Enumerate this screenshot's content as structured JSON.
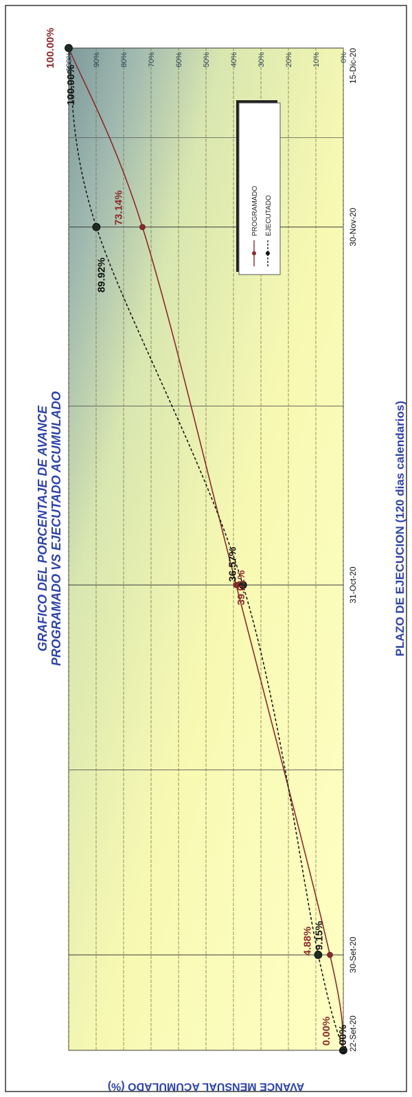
{
  "chart_data": {
    "type": "line",
    "title_line1": "GRAFICO DEL PORCENTAJE DE AVANCE",
    "title_line2": "PROGRAMADO VS EJECUTADO ACUMULADO",
    "xlabel": "PLAZO DE EJECUCION (120 dias calendarios)",
    "ylabel": "AVANCE MENSUAL ACUMULADO (%)",
    "x_ticks": [
      "22-Set-20",
      "30-Set-20",
      "31-Oct-20",
      "30-Nov-20",
      "15-Dic-20"
    ],
    "y_ticks": [
      "0%",
      "10%",
      "20%",
      "30%",
      "40%",
      "50%",
      "60%",
      "70%",
      "80%",
      "90%",
      "100%"
    ],
    "ylim": [
      0,
      100
    ],
    "grid": true,
    "legend_position": "top-right",
    "colors": {
      "programado": "#8b2a2a",
      "ejecutado": "#1a1a1a",
      "title": "#2d43a8",
      "point_label_programado": "#8b2a2a",
      "point_label_ejecutado": "#111111"
    },
    "series": [
      {
        "name": "PROGRAMADO",
        "style": "solid",
        "points": [
          {
            "x": "22-Set-20",
            "y": 0.0
          },
          {
            "x": "30-Set-20",
            "y": 4.88
          },
          {
            "x": "31-Oct-20",
            "y": 39.01
          },
          {
            "x": "30-Nov-20",
            "y": 73.14
          },
          {
            "x": "15-Dic-20",
            "y": 100.0
          }
        ]
      },
      {
        "name": "EJECUTADO",
        "style": "dashed",
        "points": [
          {
            "x": "22-Set-20",
            "y": 0.0
          },
          {
            "x": "30-Set-20",
            "y": 9.15
          },
          {
            "x": "31-Oct-20",
            "y": 36.57
          },
          {
            "x": "30-Nov-20",
            "y": 89.92
          },
          {
            "x": "15-Dic-20",
            "y": 100.0
          }
        ]
      }
    ],
    "point_labels": [
      {
        "series": "EJECUTADO",
        "index": 0,
        "text": "0.00%"
      },
      {
        "series": "PROGRAMADO",
        "index": 0,
        "text": "0.00%"
      },
      {
        "series": "EJECUTADO",
        "index": 1,
        "text": "9.15%"
      },
      {
        "series": "PROGRAMADO",
        "index": 1,
        "text": "4.88%"
      },
      {
        "series": "PROGRAMADO",
        "index": 2,
        "text": "39.01%"
      },
      {
        "series": "EJECUTADO",
        "index": 2,
        "text": "36.57%"
      },
      {
        "series": "EJECUTADO",
        "index": 3,
        "text": "89.92%"
      },
      {
        "series": "PROGRAMADO",
        "index": 3,
        "text": "73.14%"
      },
      {
        "series": "EJECUTADO",
        "index": 4,
        "text": "100.00%"
      },
      {
        "series": "PROGRAMADO",
        "index": 4,
        "text": "100.00%"
      }
    ]
  }
}
